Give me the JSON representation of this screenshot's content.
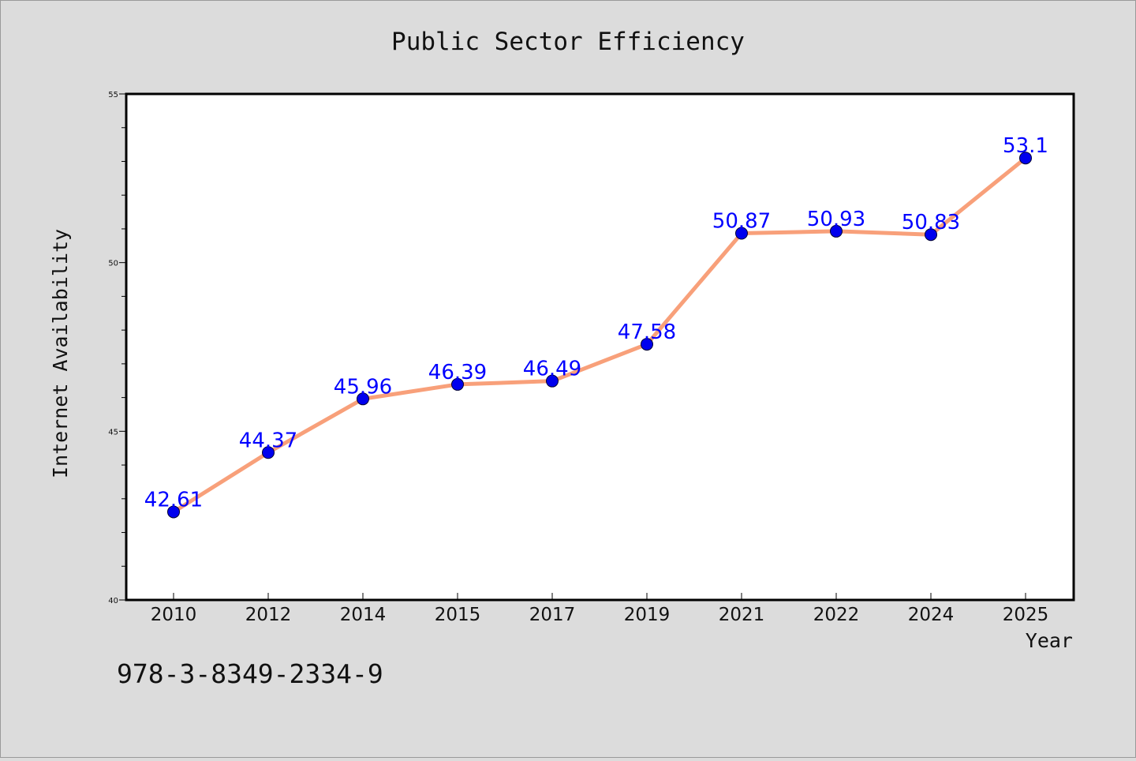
{
  "chart_data": {
    "type": "line",
    "title": "Public Sector Efficiency",
    "xlabel": "Year",
    "ylabel": "Internet Availability",
    "categories": [
      "2010",
      "2012",
      "2014",
      "2015",
      "2017",
      "2019",
      "2021",
      "2022",
      "2024",
      "2025"
    ],
    "series": [
      {
        "values": [
          42.61,
          44.37,
          45.96,
          46.39,
          46.49,
          47.58,
          50.87,
          50.93,
          50.83,
          53.1
        ],
        "data_labels": [
          "42.61",
          "44.37",
          "45.96",
          "46.39",
          "46.49",
          "47.58",
          "50.87",
          "50.93",
          "50.83",
          "53.1"
        ],
        "line_color": "#f8a07a",
        "marker_color": "#0000ee",
        "label_color": "#0000ff"
      }
    ],
    "ylim": [
      40,
      55
    ],
    "yticks": [
      "40",
      "45",
      "50",
      "55"
    ],
    "grid": false,
    "legend": "none"
  },
  "footer_text": "978-3-8349-2334-9",
  "colors": {
    "figure_background": "#dcdcdc",
    "plot_background": "#ffffff",
    "axis": "#000000"
  }
}
